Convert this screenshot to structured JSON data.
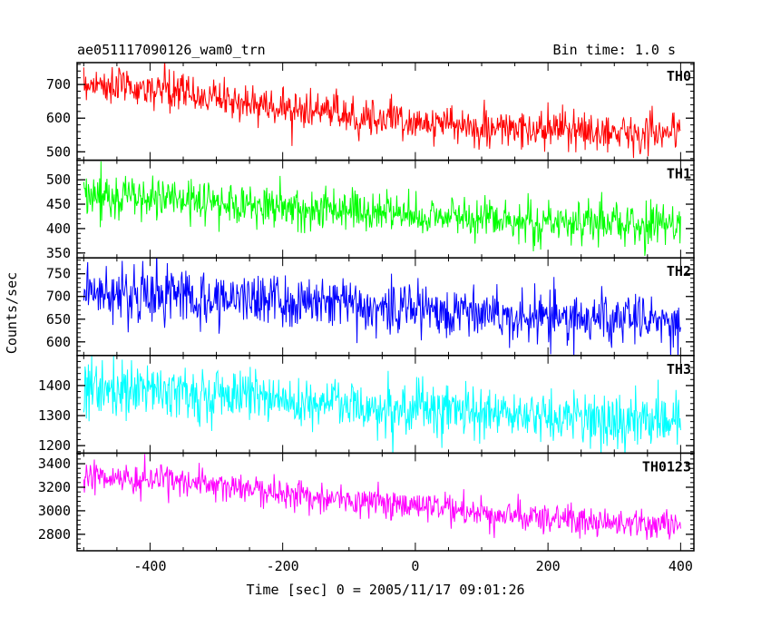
{
  "header": {
    "title": "ae051117090126_wam0_trn",
    "bin_time": "Bin time: 1.0 s"
  },
  "chart_data": {
    "type": "line",
    "xlabel": "Time [sec] 0 = 2005/11/17 09:01:26",
    "ylabel": "Counts/sec",
    "xlim": [
      -510,
      420
    ],
    "x_ticks": [
      -400,
      -200,
      0,
      200,
      400
    ],
    "x_range": [
      -500,
      400
    ],
    "bin_time_s": 1.0,
    "grid": false,
    "panels": [
      {
        "name": "TH0",
        "color": "#ff0000",
        "ylim": [
          475,
          765
        ],
        "y_ticks": [
          500,
          600,
          700
        ],
        "trend": [
          [
            -500,
            705
          ],
          [
            -350,
            675
          ],
          [
            -200,
            630
          ],
          [
            -50,
            600
          ],
          [
            100,
            570
          ],
          [
            250,
            560
          ],
          [
            400,
            560
          ]
        ],
        "noise_sd": 28
      },
      {
        "name": "TH1",
        "color": "#00ff00",
        "ylim": [
          340,
          540
        ],
        "y_ticks": [
          350,
          400,
          450,
          500
        ],
        "trend": [
          [
            -500,
            470
          ],
          [
            -250,
            450
          ],
          [
            0,
            428
          ],
          [
            200,
            415
          ],
          [
            400,
            405
          ]
        ],
        "noise_sd": 22
      },
      {
        "name": "TH2",
        "color": "#0000ff",
        "ylim": [
          570,
          785
        ],
        "y_ticks": [
          600,
          650,
          700,
          750
        ],
        "trend": [
          [
            -500,
            710
          ],
          [
            -250,
            695
          ],
          [
            0,
            675
          ],
          [
            200,
            655
          ],
          [
            400,
            640
          ]
        ],
        "noise_sd": 30
      },
      {
        "name": "TH3",
        "color": "#00ffff",
        "ylim": [
          1175,
          1500
        ],
        "y_ticks": [
          1200,
          1300,
          1400
        ],
        "trend": [
          [
            -500,
            1400
          ],
          [
            -250,
            1365
          ],
          [
            0,
            1320
          ],
          [
            200,
            1295
          ],
          [
            400,
            1275
          ]
        ],
        "noise_sd": 45
      },
      {
        "name": "TH0123",
        "color": "#ff00ff",
        "ylim": [
          2660,
          3490
        ],
        "y_ticks": [
          2800,
          3000,
          3200,
          3400
        ],
        "trend": [
          [
            -500,
            3300
          ],
          [
            -350,
            3250
          ],
          [
            -200,
            3150
          ],
          [
            0,
            3030
          ],
          [
            200,
            2930
          ],
          [
            400,
            2880
          ]
        ],
        "noise_sd": 65
      }
    ]
  }
}
